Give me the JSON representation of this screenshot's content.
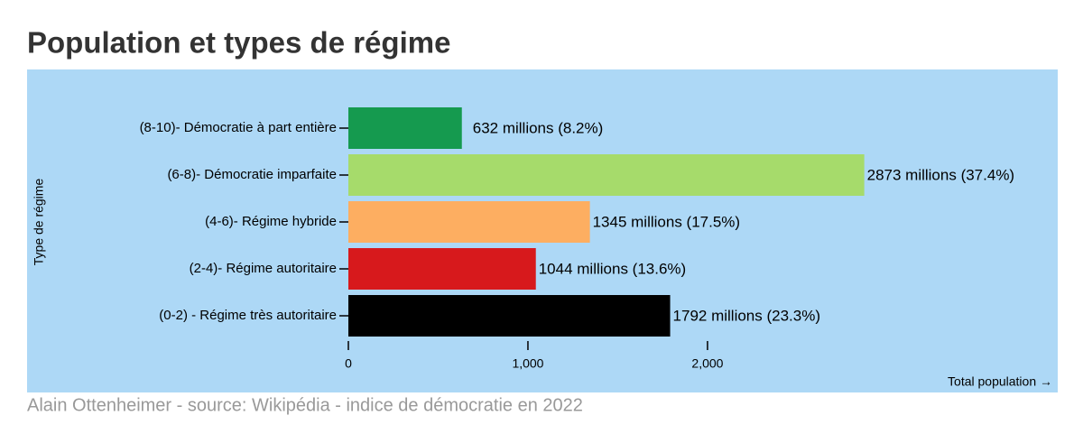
{
  "chart_data": {
    "type": "bar",
    "orientation": "horizontal",
    "title": "Population et types de régime",
    "source": "Alain Ottenheimer - source: Wikipédia - indice de démocratie en 2022",
    "x_label": "Total population →",
    "y_label": "Type de régime",
    "categories": [
      "(8-10)- Démocratie à part entière",
      "(6-8)- Démocratie imparfaite",
      "(4-6)- Régime hybride",
      "(2-4)- Régime autoritaire",
      "(0-2) - Régime très autoritaire"
    ],
    "values": [
      632,
      2873,
      1345,
      1044,
      1792
    ],
    "value_labels": [
      "632 millions (8.2%)",
      "2873 millions (37.4%)",
      "1345 millions (17.5%)",
      "1044 millions (13.6%)",
      "1792 millions (23.3%)"
    ],
    "colors": [
      "#159a4f",
      "#a6db6b",
      "#fdae61",
      "#d7191c",
      "#000000"
    ],
    "xlim": [
      0,
      2900
    ],
    "xticks": [
      0,
      {
        "value": 1000,
        "label": "1,000"
      },
      {
        "value": 2000,
        "label": "2,000"
      }
    ],
    "background": "#add8f6"
  }
}
